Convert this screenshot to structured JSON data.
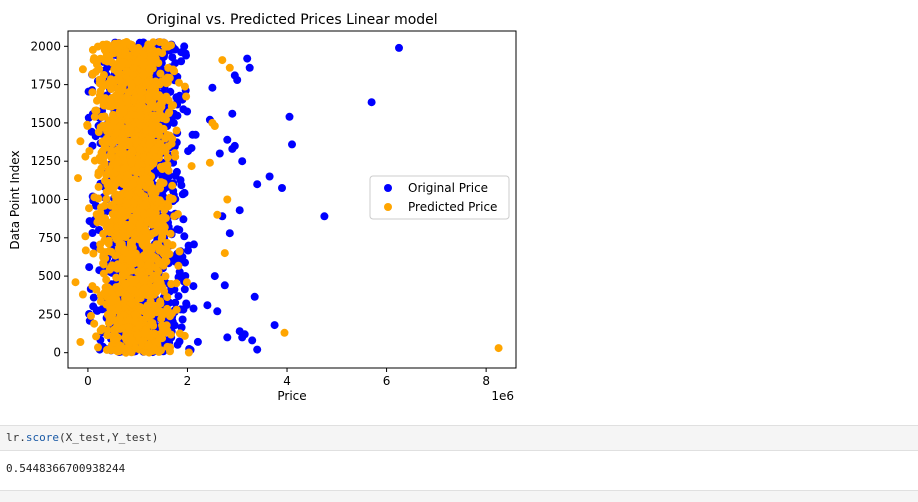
{
  "chart_data": {
    "type": "scatter",
    "title": "Original vs. Predicted Prices Linear model",
    "xlabel": "Price",
    "ylabel": "Data Point Index",
    "x_offset_label": "1e6",
    "xlim": [
      -0.4,
      8.6
    ],
    "ylim": [
      -100,
      2100
    ],
    "x_ticks": [
      0,
      2,
      4,
      6,
      8
    ],
    "y_ticks": [
      0,
      250,
      500,
      750,
      1000,
      1250,
      1500,
      1750,
      2000
    ],
    "legend": "center-right",
    "series": [
      {
        "name": "Original Price",
        "color": "#0000ff",
        "points": [
          [
            6.25,
            1990
          ],
          [
            5.7,
            1635
          ],
          [
            4.75,
            890
          ],
          [
            4.05,
            1540
          ],
          [
            4.1,
            1360
          ],
          [
            3.9,
            1075
          ],
          [
            3.75,
            180
          ],
          [
            3.65,
            1150
          ],
          [
            3.4,
            1100
          ],
          [
            3.35,
            365
          ],
          [
            3.25,
            1860
          ],
          [
            3.2,
            1920
          ],
          [
            3.1,
            1250
          ],
          [
            3.05,
            930
          ],
          [
            2.95,
            1350
          ],
          [
            2.9,
            1330
          ],
          [
            2.85,
            780
          ],
          [
            2.8,
            100
          ],
          [
            2.75,
            440
          ],
          [
            2.7,
            890
          ],
          [
            3.1,
            100
          ],
          [
            3.0,
            1780
          ],
          [
            2.95,
            1810
          ],
          [
            3.15,
            120
          ],
          [
            3.3,
            80
          ],
          [
            3.4,
            20
          ],
          [
            2.9,
            1560
          ],
          [
            2.8,
            1390
          ],
          [
            3.05,
            140
          ],
          [
            2.65,
            1300
          ],
          [
            2.6,
            270
          ],
          [
            2.55,
            500
          ],
          [
            2.5,
            1730
          ],
          [
            2.45,
            1520
          ],
          [
            2.4,
            310
          ]
        ]
      },
      {
        "name": "Predicted Price",
        "color": "#ffa500",
        "points": [
          [
            8.25,
            30
          ],
          [
            3.95,
            130
          ],
          [
            2.85,
            1860
          ],
          [
            2.8,
            1000
          ],
          [
            2.75,
            650
          ],
          [
            2.7,
            1910
          ],
          [
            2.6,
            900
          ],
          [
            2.55,
            1480
          ],
          [
            2.5,
            1500
          ],
          [
            2.45,
            1240
          ],
          [
            -0.25,
            460
          ],
          [
            -0.15,
            1380
          ],
          [
            -0.2,
            1140
          ],
          [
            -0.1,
            1850
          ],
          [
            -0.05,
            760
          ],
          [
            -0.1,
            380
          ],
          [
            -0.15,
            70
          ],
          [
            -0.05,
            1280
          ]
        ]
      }
    ]
  },
  "notebook": {
    "code_var": "lr",
    "code_method": "score",
    "code_args": "(X_test,Y_test)",
    "output": "0.5448366700938244"
  }
}
